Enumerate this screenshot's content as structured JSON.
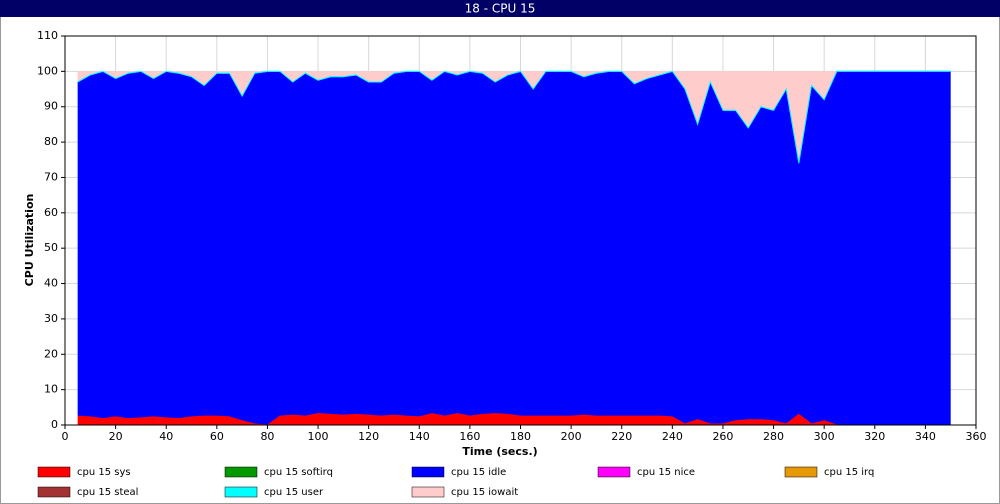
{
  "chart_data": {
    "type": "stacked_area",
    "title": "18 - CPU 15",
    "xlabel": "Time (secs.)",
    "ylabel": "CPU Utilization",
    "x": [
      5,
      10,
      15,
      20,
      25,
      30,
      35,
      40,
      45,
      50,
      55,
      60,
      65,
      70,
      75,
      80,
      85,
      90,
      95,
      100,
      105,
      110,
      115,
      120,
      125,
      130,
      135,
      140,
      145,
      150,
      155,
      160,
      165,
      170,
      175,
      180,
      185,
      190,
      195,
      200,
      205,
      210,
      215,
      220,
      225,
      230,
      235,
      240,
      245,
      250,
      255,
      260,
      265,
      270,
      275,
      280,
      285,
      290,
      295,
      300,
      305,
      310,
      315,
      320,
      325,
      330,
      335,
      340,
      345,
      350
    ],
    "series": [
      {
        "name": "cpu 15 sys",
        "color": "#ff0000",
        "values": [
          2.5,
          2.3,
          1.8,
          2.3,
          1.8,
          2,
          2.3,
          2,
          1.8,
          2.3,
          2.5,
          2.5,
          2.3,
          1.2,
          0.3,
          0,
          2.5,
          2.8,
          2.5,
          3.2,
          3,
          2.8,
          3,
          2.8,
          2.5,
          2.8,
          2.5,
          2.3,
          3.2,
          2.5,
          3.2,
          2.5,
          3,
          3.2,
          3,
          2.5,
          2.5,
          2.5,
          2.5,
          2.5,
          2.8,
          2.5,
          2.5,
          2.5,
          2.5,
          2.5,
          2.5,
          2.3,
          0.3,
          1.5,
          0.3,
          0.3,
          1.2,
          1.5,
          1.5,
          1.2,
          0.3,
          3,
          0.3,
          1.2,
          0,
          0,
          0,
          0,
          0,
          0,
          0,
          0,
          0,
          0
        ]
      },
      {
        "name": "cpu 15 softirq",
        "color": "#009900",
        "values": [
          0,
          0,
          0,
          0,
          0,
          0,
          0,
          0,
          0,
          0,
          0,
          0,
          0,
          0,
          0,
          0,
          0,
          0,
          0,
          0,
          0,
          0,
          0,
          0,
          0,
          0,
          0,
          0,
          0,
          0,
          0,
          0,
          0,
          0,
          0,
          0,
          0,
          0,
          0,
          0,
          0,
          0,
          0,
          0,
          0,
          0,
          0,
          0,
          0,
          0,
          0,
          0,
          0,
          0,
          0,
          0,
          0,
          0,
          0,
          0,
          0,
          0,
          0,
          0,
          0,
          0,
          0,
          0,
          0,
          0
        ]
      },
      {
        "name": "cpu 15 idle",
        "color": "#0000ff",
        "values": [
          94.2,
          96.4,
          97.9,
          95.4,
          97.4,
          97.7,
          95.4,
          97.7,
          97.4,
          95.9,
          93.2,
          96.7,
          96.9,
          91.5,
          98.9,
          99.7,
          97.2,
          93.9,
          96.7,
          94,
          95.2,
          95.4,
          95.7,
          93.9,
          94.2,
          96.4,
          97.2,
          97.4,
          94,
          97.2,
          95.5,
          97.2,
          96.2,
          93.5,
          95.7,
          97.2,
          92.2,
          97.2,
          97.2,
          97.2,
          95.4,
          96.7,
          97.2,
          97.2,
          93.7,
          95.2,
          96.2,
          97.4,
          94.4,
          83.2,
          96.4,
          88.4,
          87.5,
          82.2,
          88.2,
          87.5,
          94.4,
          70.7,
          95.4,
          90.5,
          100,
          100,
          100,
          100,
          100,
          100,
          100,
          100,
          100,
          100
        ]
      },
      {
        "name": "cpu 15 nice",
        "color": "#ff00ff",
        "values": [
          0,
          0,
          0,
          0,
          0,
          0,
          0,
          0,
          0,
          0,
          0,
          0,
          0,
          0,
          0,
          0,
          0,
          0,
          0,
          0,
          0,
          0,
          0,
          0,
          0,
          0,
          0,
          0,
          0,
          0,
          0,
          0,
          0,
          0,
          0,
          0,
          0,
          0,
          0,
          0,
          0,
          0,
          0,
          0,
          0,
          0,
          0,
          0,
          0,
          0,
          0,
          0,
          0,
          0,
          0,
          0,
          0,
          0,
          0,
          0,
          0,
          0,
          0,
          0,
          0,
          0,
          0,
          0,
          0,
          0
        ]
      },
      {
        "name": "cpu 15 irq",
        "color": "#e69900",
        "values": [
          0,
          0,
          0,
          0,
          0,
          0,
          0,
          0,
          0,
          0,
          0,
          0,
          0,
          0,
          0,
          0,
          0,
          0,
          0,
          0,
          0,
          0,
          0,
          0,
          0,
          0,
          0,
          0,
          0,
          0,
          0,
          0,
          0,
          0,
          0,
          0,
          0,
          0,
          0,
          0,
          0,
          0,
          0,
          0,
          0,
          0,
          0,
          0,
          0,
          0,
          0,
          0,
          0,
          0,
          0,
          0,
          0,
          0,
          0,
          0,
          0,
          0,
          0,
          0,
          0,
          0,
          0,
          0,
          0,
          0
        ]
      },
      {
        "name": "cpu 15 steal",
        "color": "#a33333",
        "values": [
          0,
          0,
          0,
          0,
          0,
          0,
          0,
          0,
          0,
          0,
          0,
          0,
          0,
          0,
          0,
          0,
          0,
          0,
          0,
          0,
          0,
          0,
          0,
          0,
          0,
          0,
          0,
          0,
          0,
          0,
          0,
          0,
          0,
          0,
          0,
          0,
          0,
          0,
          0,
          0,
          0,
          0,
          0,
          0,
          0,
          0,
          0,
          0,
          0,
          0,
          0,
          0,
          0,
          0,
          0,
          0,
          0,
          0,
          0,
          0,
          0,
          0,
          0,
          0,
          0,
          0,
          0,
          0,
          0,
          0
        ]
      },
      {
        "name": "cpu 15 user",
        "color": "#00ffff",
        "values": [
          0.3,
          0.3,
          0.3,
          0.3,
          0.3,
          0.3,
          0.3,
          0.3,
          0.3,
          0.3,
          0.3,
          0.3,
          0.3,
          0.3,
          0.3,
          0.3,
          0.3,
          0.3,
          0.3,
          0.3,
          0.3,
          0.3,
          0.3,
          0.3,
          0.3,
          0.3,
          0.3,
          0.3,
          0.3,
          0.3,
          0.3,
          0.3,
          0.3,
          0.3,
          0.3,
          0.3,
          0.3,
          0.3,
          0.3,
          0.3,
          0.3,
          0.3,
          0.3,
          0.3,
          0.3,
          0.3,
          0.3,
          0.3,
          0.3,
          0.3,
          0.3,
          0.3,
          0.3,
          0.3,
          0.3,
          0.3,
          0.3,
          0.3,
          0.3,
          0.3,
          0,
          0,
          0,
          0,
          0,
          0,
          0,
          0,
          0,
          0
        ]
      },
      {
        "name": "cpu 15 iowait",
        "color": "#ffcccc",
        "values": [
          3,
          1,
          0,
          2,
          0.5,
          0,
          2,
          0,
          0.5,
          1.5,
          4,
          0.5,
          0.5,
          7,
          0.5,
          0,
          0,
          3,
          0.5,
          2.5,
          1.5,
          1.5,
          1,
          3,
          3,
          0.5,
          0,
          0,
          2.5,
          0,
          1,
          0,
          0.5,
          3,
          1,
          0,
          5,
          0,
          0,
          0,
          1.5,
          0.5,
          0,
          0,
          3.5,
          2,
          1,
          0,
          5,
          15,
          3,
          11,
          11,
          16,
          10,
          11,
          5,
          26,
          4,
          8,
          0,
          0,
          0,
          0,
          0,
          0,
          0,
          0,
          0,
          0
        ]
      }
    ],
    "xlim": [
      0,
      360
    ],
    "ylim": [
      0,
      110
    ],
    "xticks": [
      0,
      20,
      40,
      60,
      80,
      100,
      120,
      140,
      160,
      180,
      200,
      220,
      240,
      260,
      280,
      300,
      320,
      340,
      360
    ],
    "yticks": [
      0,
      10,
      20,
      30,
      40,
      50,
      60,
      70,
      80,
      90,
      100,
      110
    ],
    "grid": true
  }
}
